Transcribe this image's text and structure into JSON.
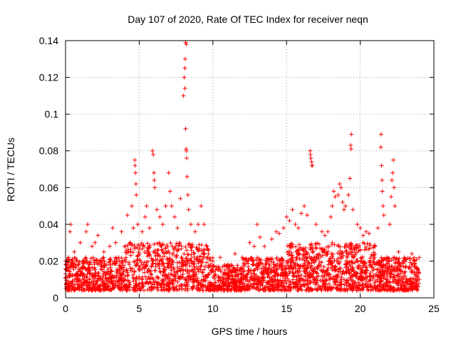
{
  "chart_data": {
    "type": "scatter",
    "title": "Day 107 of 2020, Rate Of TEC Index for receiver neqn",
    "xlabel": "GPS time / hours",
    "ylabel": "ROTI / TECUs",
    "xlim": [
      0,
      25
    ],
    "ylim": [
      0,
      0.14
    ],
    "x_ticks": [
      0,
      5,
      10,
      15,
      20,
      25
    ],
    "x_tick_labels": [
      "0",
      "5",
      "10",
      "15",
      "20",
      "25"
    ],
    "y_ticks": [
      0,
      0.02,
      0.04,
      0.06,
      0.08,
      0.1,
      0.12,
      0.14
    ],
    "y_tick_labels": [
      "0",
      "0.02",
      "0.04",
      "0.06",
      "0.08",
      "0.1",
      "0.12",
      "0.14"
    ],
    "grid": true,
    "marker": "+",
    "color": "#ff0000",
    "series": [
      {
        "name": "ROTI",
        "points": [
          [
            0.05,
            0.006
          ],
          [
            0.1,
            0.015
          ],
          [
            0.2,
            0.022
          ],
          [
            0.3,
            0.036
          ],
          [
            0.35,
            0.04
          ],
          [
            0.5,
            0.018
          ],
          [
            0.6,
            0.025
          ],
          [
            0.8,
            0.012
          ],
          [
            1.0,
            0.03
          ],
          [
            1.2,
            0.02
          ],
          [
            1.4,
            0.036
          ],
          [
            1.5,
            0.04
          ],
          [
            1.6,
            0.015
          ],
          [
            1.8,
            0.028
          ],
          [
            2.0,
            0.03
          ],
          [
            2.2,
            0.034
          ],
          [
            2.4,
            0.02
          ],
          [
            2.6,
            0.025
          ],
          [
            2.8,
            0.018
          ],
          [
            3.0,
            0.028
          ],
          [
            3.2,
            0.038
          ],
          [
            3.4,
            0.03
          ],
          [
            3.6,
            0.022
          ],
          [
            3.8,
            0.036
          ],
          [
            4.0,
            0.028
          ],
          [
            4.2,
            0.045
          ],
          [
            4.4,
            0.03
          ],
          [
            4.5,
            0.05
          ],
          [
            4.6,
            0.038
          ],
          [
            4.7,
            0.075
          ],
          [
            4.72,
            0.072
          ],
          [
            4.75,
            0.068
          ],
          [
            4.78,
            0.062
          ],
          [
            4.8,
            0.056
          ],
          [
            4.9,
            0.04
          ],
          [
            5.2,
            0.036
          ],
          [
            5.4,
            0.044
          ],
          [
            5.5,
            0.05
          ],
          [
            5.7,
            0.038
          ],
          [
            5.9,
            0.08
          ],
          [
            5.95,
            0.078
          ],
          [
            6.0,
            0.068
          ],
          [
            6.02,
            0.064
          ],
          [
            6.05,
            0.06
          ],
          [
            6.2,
            0.048
          ],
          [
            6.4,
            0.044
          ],
          [
            6.6,
            0.04
          ],
          [
            6.8,
            0.05
          ],
          [
            7.0,
            0.068
          ],
          [
            7.1,
            0.058
          ],
          [
            7.2,
            0.05
          ],
          [
            7.4,
            0.044
          ],
          [
            7.6,
            0.038
          ],
          [
            7.8,
            0.054
          ],
          [
            8.0,
            0.11
          ],
          [
            8.05,
            0.12
          ],
          [
            8.1,
            0.125
          ],
          [
            8.12,
            0.13
          ],
          [
            8.15,
            0.139
          ],
          [
            8.2,
            0.138
          ],
          [
            8.1,
            0.114
          ],
          [
            8.15,
            0.092
          ],
          [
            8.18,
            0.081
          ],
          [
            8.2,
            0.08
          ],
          [
            8.22,
            0.076
          ],
          [
            8.25,
            0.066
          ],
          [
            8.3,
            0.056
          ],
          [
            8.35,
            0.048
          ],
          [
            8.5,
            0.04
          ],
          [
            8.8,
            0.036
          ],
          [
            9.0,
            0.04
          ],
          [
            9.2,
            0.05
          ],
          [
            9.4,
            0.04
          ],
          [
            9.6,
            0.028
          ],
          [
            10.0,
            0.02
          ],
          [
            10.5,
            0.022
          ],
          [
            11.0,
            0.018
          ],
          [
            11.5,
            0.024
          ],
          [
            12.0,
            0.022
          ],
          [
            12.5,
            0.03
          ],
          [
            12.8,
            0.028
          ],
          [
            13.0,
            0.04
          ],
          [
            13.2,
            0.033
          ],
          [
            13.5,
            0.028
          ],
          [
            14.0,
            0.032
          ],
          [
            14.3,
            0.036
          ],
          [
            14.5,
            0.035
          ],
          [
            14.8,
            0.038
          ],
          [
            15.0,
            0.044
          ],
          [
            15.2,
            0.042
          ],
          [
            15.4,
            0.048
          ],
          [
            15.6,
            0.04
          ],
          [
            15.8,
            0.038
          ],
          [
            16.0,
            0.046
          ],
          [
            16.2,
            0.05
          ],
          [
            16.4,
            0.045
          ],
          [
            16.6,
            0.08
          ],
          [
            16.62,
            0.078
          ],
          [
            16.65,
            0.076
          ],
          [
            16.7,
            0.074
          ],
          [
            16.72,
            0.072
          ],
          [
            16.75,
            0.072
          ],
          [
            17.0,
            0.04
          ],
          [
            17.4,
            0.036
          ],
          [
            17.6,
            0.034
          ],
          [
            17.8,
            0.036
          ],
          [
            18.0,
            0.044
          ],
          [
            18.1,
            0.05
          ],
          [
            18.2,
            0.058
          ],
          [
            18.3,
            0.055
          ],
          [
            18.5,
            0.056
          ],
          [
            18.6,
            0.062
          ],
          [
            18.7,
            0.06
          ],
          [
            18.8,
            0.052
          ],
          [
            18.9,
            0.048
          ],
          [
            19.0,
            0.05
          ],
          [
            19.2,
            0.056
          ],
          [
            19.3,
            0.065
          ],
          [
            19.35,
            0.083
          ],
          [
            19.38,
            0.081
          ],
          [
            19.4,
            0.089
          ],
          [
            19.5,
            0.048
          ],
          [
            19.8,
            0.04
          ],
          [
            20.0,
            0.038
          ],
          [
            20.2,
            0.034
          ],
          [
            20.4,
            0.036
          ],
          [
            20.6,
            0.035
          ],
          [
            21.0,
            0.028
          ],
          [
            21.2,
            0.038
          ],
          [
            21.4,
            0.082
          ],
          [
            21.42,
            0.089
          ],
          [
            21.45,
            0.072
          ],
          [
            21.48,
            0.064
          ],
          [
            21.5,
            0.058
          ],
          [
            21.55,
            0.05
          ],
          [
            21.6,
            0.045
          ],
          [
            22.0,
            0.04
          ],
          [
            22.1,
            0.055
          ],
          [
            22.15,
            0.064
          ],
          [
            22.2,
            0.068
          ],
          [
            22.25,
            0.075
          ],
          [
            22.3,
            0.06
          ],
          [
            22.35,
            0.05
          ],
          [
            22.6,
            0.025
          ],
          [
            23.0,
            0.022
          ],
          [
            23.5,
            0.024
          ],
          [
            23.9,
            0.016
          ],
          [
            24.0,
            0.01
          ]
        ]
      }
    ]
  }
}
